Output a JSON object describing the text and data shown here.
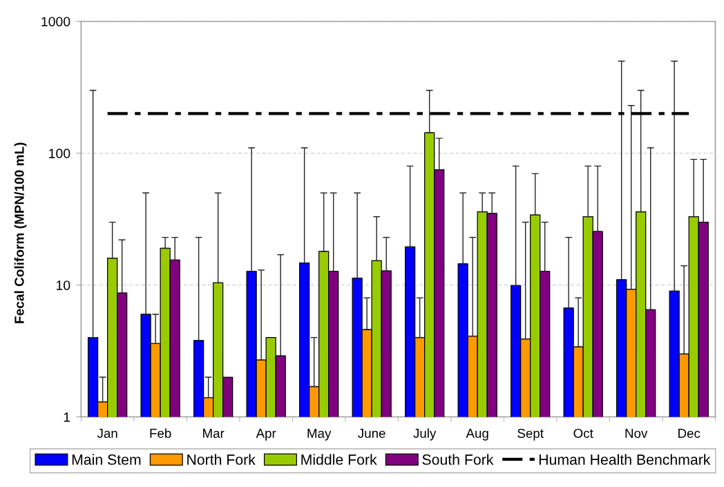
{
  "chart_data": {
    "type": "bar",
    "ylabel": "Fecal Coliform (MPN/100 mL)",
    "categories": [
      "Jan",
      "Feb",
      "Mar",
      "Apr",
      "May",
      "June",
      "July",
      "Aug",
      "Sept",
      "Oct",
      "Nov",
      "Dec"
    ],
    "series": [
      {
        "name": "Main Stem",
        "color": "#0000ff",
        "values": [
          4.0,
          6.0,
          3.8,
          12.7,
          14.7,
          11.3,
          19.5,
          14.5,
          9.9,
          6.7,
          11.0,
          9.0
        ],
        "errors": [
          [
            4.0,
            300
          ],
          [
            6.0,
            50
          ],
          [
            3.8,
            23
          ],
          [
            12.7,
            110
          ],
          [
            14.7,
            110
          ],
          [
            11.3,
            50
          ],
          [
            19.5,
            80
          ],
          [
            14.5,
            50
          ],
          [
            9.9,
            80
          ],
          [
            6.7,
            23
          ],
          [
            11.0,
            500
          ],
          [
            9.0,
            500
          ]
        ]
      },
      {
        "name": "North Fork",
        "color": "#ff9900",
        "values": [
          1.3,
          3.6,
          1.4,
          2.7,
          1.7,
          4.6,
          4.0,
          4.1,
          3.9,
          3.4,
          9.3,
          3.0
        ],
        "errors": [
          [
            1.3,
            2
          ],
          [
            3.6,
            6
          ],
          [
            1.4,
            2
          ],
          [
            2.7,
            13
          ],
          [
            1.7,
            4
          ],
          [
            4.6,
            8
          ],
          [
            4.0,
            8
          ],
          [
            4.1,
            23
          ],
          [
            3.9,
            30
          ],
          [
            3.4,
            8
          ],
          [
            9.3,
            230
          ],
          [
            3.0,
            14
          ]
        ]
      },
      {
        "name": "Middle Fork",
        "color": "#99cc00",
        "values": [
          16,
          19,
          10.4,
          4.0,
          18,
          15.3,
          143,
          36,
          34,
          33,
          36,
          33
        ],
        "errors": [
          [
            16,
            30
          ],
          [
            19,
            23
          ],
          [
            10.4,
            50
          ],
          null,
          [
            18,
            50
          ],
          [
            15.3,
            33
          ],
          [
            143,
            300
          ],
          [
            36,
            50
          ],
          [
            34,
            70
          ],
          [
            33,
            80
          ],
          [
            36,
            300
          ],
          [
            33,
            90
          ]
        ]
      },
      {
        "name": "South Fork",
        "color": "#800080",
        "values": [
          8.7,
          15.5,
          2.0,
          2.9,
          12.7,
          12.8,
          75,
          35,
          12.7,
          25.5,
          6.5,
          30
        ],
        "errors": [
          [
            8.7,
            22
          ],
          [
            15.5,
            23
          ],
          null,
          [
            2.9,
            17
          ],
          [
            12.7,
            50
          ],
          [
            12.8,
            23
          ],
          [
            75,
            130
          ],
          [
            35,
            50
          ],
          [
            12.7,
            30
          ],
          [
            25.5,
            80
          ],
          [
            6.5,
            110
          ],
          [
            30,
            90
          ]
        ]
      },
      {
        "name": "Human Health Benchmark",
        "type": "line",
        "color": "#000000",
        "line_style": "dashdot",
        "values": [
          200,
          200,
          200,
          200,
          200,
          200,
          200,
          200,
          200,
          200,
          200,
          200
        ]
      }
    ],
    "log": true,
    "ylim": [
      1,
      1000
    ],
    "yticks": [
      1,
      10,
      100,
      1000
    ],
    "grid": "y",
    "legend": "bottom"
  }
}
